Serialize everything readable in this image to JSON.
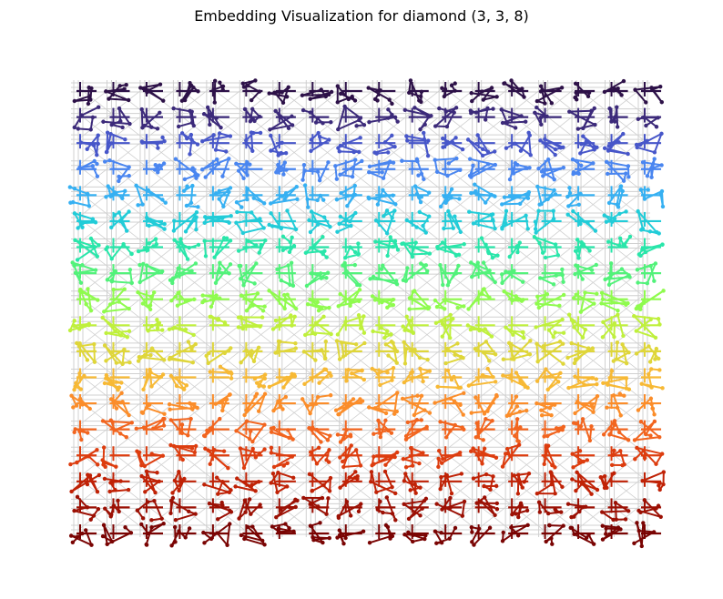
{
  "figure": {
    "title": "Embedding Visualization for diamond (3, 3, 8)"
  },
  "graph": {
    "layout": "grid",
    "columns": 18,
    "rows": 18,
    "background_edge_color": "#d0d0d0",
    "colormap": "jet",
    "band_colors": [
      "#2d1148",
      "#3c2a7a",
      "#4756c9",
      "#4a86f0",
      "#36b0f2",
      "#22ccd8",
      "#29e6aa",
      "#52f27a",
      "#8ffb4e",
      "#bff03c",
      "#dfd63a",
      "#f7b935",
      "#fb8d2a",
      "#f2651f",
      "#dd3d0f",
      "#c02206",
      "#9c1004",
      "#7a0403"
    ]
  }
}
